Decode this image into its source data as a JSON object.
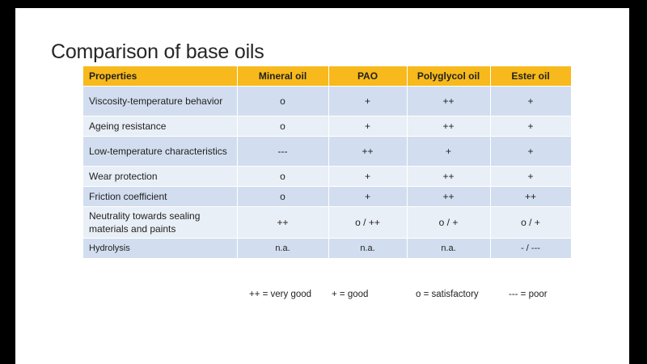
{
  "title": "Comparison of base oils",
  "table": {
    "headers": [
      "Properties",
      "Mineral oil",
      "PAO",
      "Polyglycol  oil",
      "Ester oil"
    ],
    "rows": [
      [
        "Viscosity-temperature behavior",
        "o",
        "+",
        "++",
        "+"
      ],
      [
        "Ageing resistance",
        "o",
        "+",
        "++",
        "+"
      ],
      [
        "Low-temperature characteristics",
        "---",
        "++",
        "+",
        "+"
      ],
      [
        "Wear protection",
        "o",
        "+",
        "++",
        "+"
      ],
      [
        "Friction coefficient",
        "o",
        "+",
        "++",
        "++"
      ],
      [
        "Neutrality towards sealing materials and paints",
        "++",
        "o / ++",
        "o / +",
        "o / +"
      ],
      [
        "Hydrolysis",
        "n.a.",
        "n.a.",
        "n.a.",
        "- / ---"
      ]
    ]
  },
  "legend": [
    "++ = very good",
    "+ = good",
    "o = satisfactory",
    "--- = poor"
  ],
  "colors": {
    "header": "#f7b91b",
    "row_odd": "#d2deef",
    "row_even": "#e9eff7"
  }
}
